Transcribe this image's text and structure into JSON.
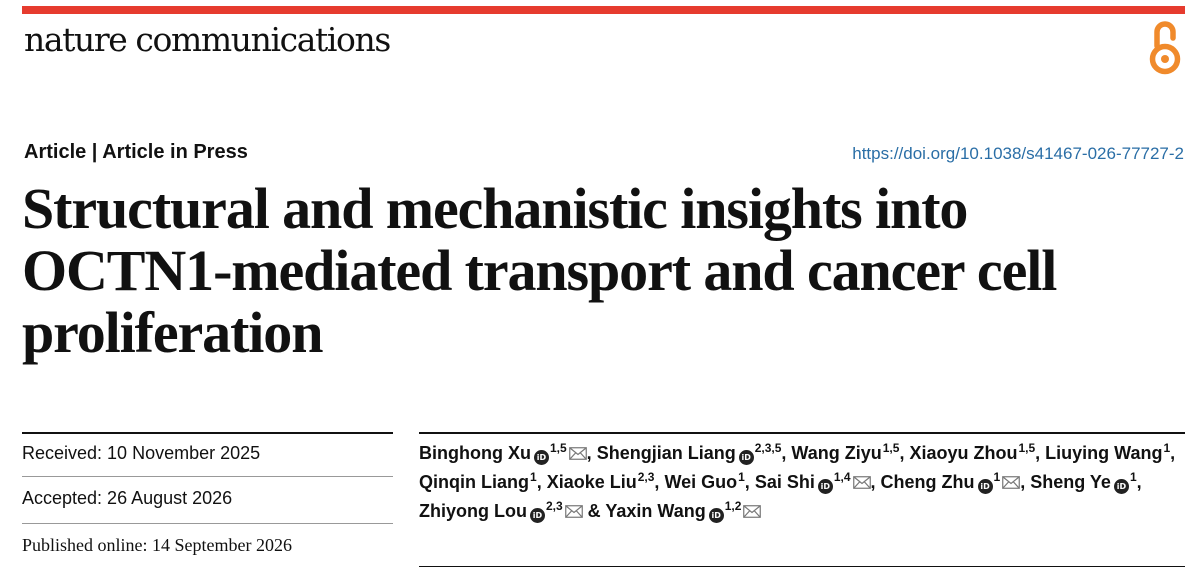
{
  "journal": {
    "name": "nature communications"
  },
  "icons": {
    "open_access": "open-access-lock-icon",
    "orcid": "orcid-icon",
    "email": "envelope-icon"
  },
  "colors": {
    "brand_bar": "#e63b2e",
    "open_access": "#f08a2b",
    "link": "#2a6ea6"
  },
  "article": {
    "type": "Article | Article in Press",
    "doi": "https://doi.org/10.1038/s41467-026-77727-2",
    "title": "Structural and mechanistic insights into OCTN1-mediated transport and cancer cell proliferation"
  },
  "dates": {
    "received": "Received: 10 November 2025",
    "accepted": "Accepted: 26 August 2026",
    "published": "Published online: 14 September 2026"
  },
  "authors": [
    {
      "name": "Binghong Xu",
      "orcid": true,
      "aff": "1,5",
      "email": true,
      "sep": ", "
    },
    {
      "name": "Shengjian Liang",
      "orcid": true,
      "aff": "2,3,5",
      "email": false,
      "sep": ", "
    },
    {
      "name": "Wang Ziyu",
      "orcid": false,
      "aff": "1,5",
      "email": false,
      "sep": ", "
    },
    {
      "name": "Xiaoyu Zhou",
      "orcid": false,
      "aff": "1,5",
      "email": false,
      "sep": ", "
    },
    {
      "name": "Liuying Wang",
      "orcid": false,
      "aff": "1",
      "email": false,
      "sep": ", "
    },
    {
      "name": "Qinqin Liang",
      "orcid": false,
      "aff": "1",
      "email": false,
      "sep": ", "
    },
    {
      "name": "Xiaoke Liu",
      "orcid": false,
      "aff": "2,3",
      "email": false,
      "sep": ", "
    },
    {
      "name": "Wei Guo",
      "orcid": false,
      "aff": "1",
      "email": false,
      "sep": ", "
    },
    {
      "name": "Sai Shi",
      "orcid": true,
      "aff": "1,4",
      "email": true,
      "sep": ", "
    },
    {
      "name": "Cheng Zhu",
      "orcid": true,
      "aff": "1",
      "email": true,
      "sep": ", "
    },
    {
      "name": "Sheng Ye",
      "orcid": true,
      "aff": "1",
      "email": false,
      "sep": ", "
    },
    {
      "name": "Zhiyong Lou",
      "orcid": true,
      "aff": "2,3",
      "email": true,
      "sep": " & "
    },
    {
      "name": "Yaxin Wang",
      "orcid": true,
      "aff": "1,2",
      "email": true,
      "sep": ""
    }
  ]
}
